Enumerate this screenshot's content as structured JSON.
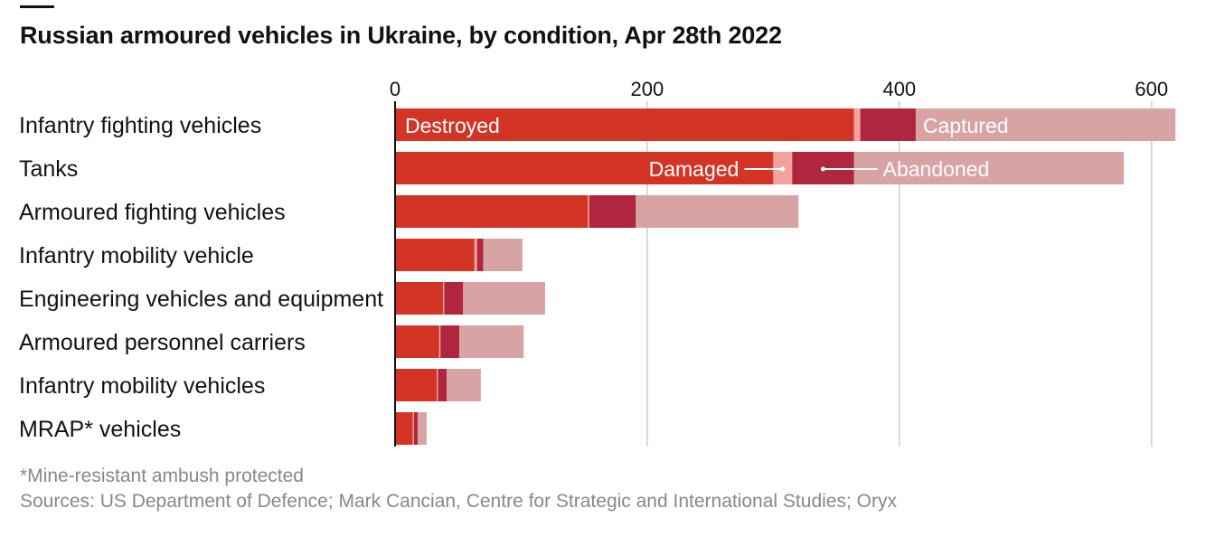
{
  "title": "Russian armoured vehicles in Ukraine, by condition, Apr 28th 2022",
  "footnote": "*Mine-resistant ambush protected",
  "sources": "Sources: US Department of Defence; Mark Cancian, Centre for Strategic and International Studies; Oryx",
  "colors": {
    "destroyed": "#d33426",
    "damaged": "#f3a39b",
    "abandoned": "#b1263f",
    "captured": "#d8a3a3",
    "gridline": "#d9d9d9",
    "axis": "#121212",
    "footnote": "#888888"
  },
  "chart_data": {
    "type": "bar",
    "orientation": "horizontal",
    "stacked": true,
    "categories": [
      "Infantry fighting vehicles",
      "Tanks",
      "Armoured fighting vehicles",
      "Infantry mobility vehicle",
      "Engineering vehicles and equipment",
      "Armoured personnel carriers",
      "Infantry mobility vehicles",
      "MRAP* vehicles"
    ],
    "series": [
      {
        "name": "Destroyed",
        "values": [
          364,
          300,
          153,
          63,
          38,
          35,
          33,
          14
        ]
      },
      {
        "name": "Damaged",
        "values": [
          5,
          15,
          1,
          2,
          1,
          1,
          1,
          1
        ]
      },
      {
        "name": "Abandoned",
        "values": [
          44,
          49,
          37,
          5,
          15,
          15,
          7,
          3
        ]
      },
      {
        "name": "Captured",
        "values": [
          206,
          214,
          129,
          31,
          65,
          51,
          27,
          7
        ]
      }
    ],
    "xlim": [
      0,
      620
    ],
    "xticks": [
      0,
      200,
      400,
      600
    ],
    "grid": true,
    "legend": "inline labels on top two bars"
  }
}
